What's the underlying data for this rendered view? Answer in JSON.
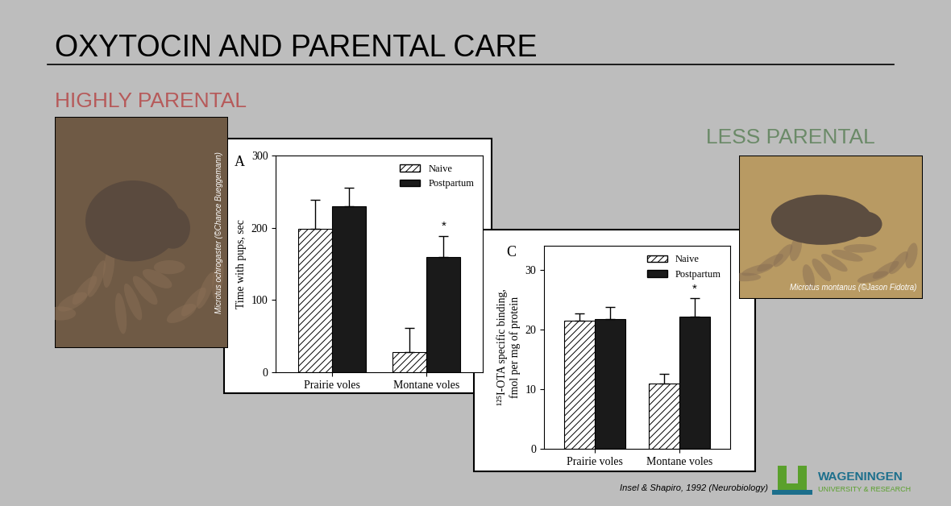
{
  "slide": {
    "title": "OXYTOCIN AND PARENTAL CARE",
    "left_heading": "HIGHLY PARENTAL",
    "right_heading": "LESS PARENTAL",
    "left_photo_caption": "Microtus ochrogaster (©Chance Bueggemann)",
    "right_photo_caption": "Microtus montanus (©Jason Fidotra)",
    "citation": "Insel & Shapiro, 1992 (Neurobiology)",
    "logo": {
      "name": "WAGENINGEN",
      "subtitle": "UNIVERSITY & RESEARCH"
    }
  },
  "chart_data": [
    {
      "type": "bar",
      "panel": "A",
      "y_label": "Time with pups, sec",
      "categories": [
        "Prairie voles",
        "Montane voles"
      ],
      "series": [
        {
          "name": "Naive",
          "color": "#ffffff",
          "values": [
            198,
            28
          ],
          "errors": [
            40,
            33
          ]
        },
        {
          "name": "Postpartum",
          "color": "#1a1a1a",
          "values": [
            230,
            160
          ],
          "errors": [
            25,
            28
          ]
        }
      ],
      "ylim": [
        0,
        300
      ],
      "yticks": [
        0,
        100,
        200,
        300
      ],
      "grid": false,
      "legend": "upper right",
      "annotations": [
        {
          "text": "*",
          "category": "Montane voles",
          "series": "Postpartum"
        }
      ]
    },
    {
      "type": "bar",
      "panel": "C",
      "y_label": "¹²⁵I-OTA specific binding,\nfmol per mg of protein",
      "categories": [
        "Prairie voles",
        "Montane voles"
      ],
      "series": [
        {
          "name": "Naive",
          "color": "#ffffff",
          "values": [
            21.5,
            11
          ],
          "errors": [
            1.2,
            1.5
          ]
        },
        {
          "name": "Postpartum",
          "color": "#1a1a1a",
          "values": [
            21.7,
            22.2
          ],
          "errors": [
            2,
            3
          ]
        }
      ],
      "ylim": [
        0,
        34
      ],
      "yticks": [
        0,
        10,
        20,
        30
      ],
      "grid": false,
      "legend": "upper right",
      "annotations": [
        {
          "text": "*",
          "category": "Montane voles",
          "series": "Postpartum"
        }
      ]
    }
  ]
}
